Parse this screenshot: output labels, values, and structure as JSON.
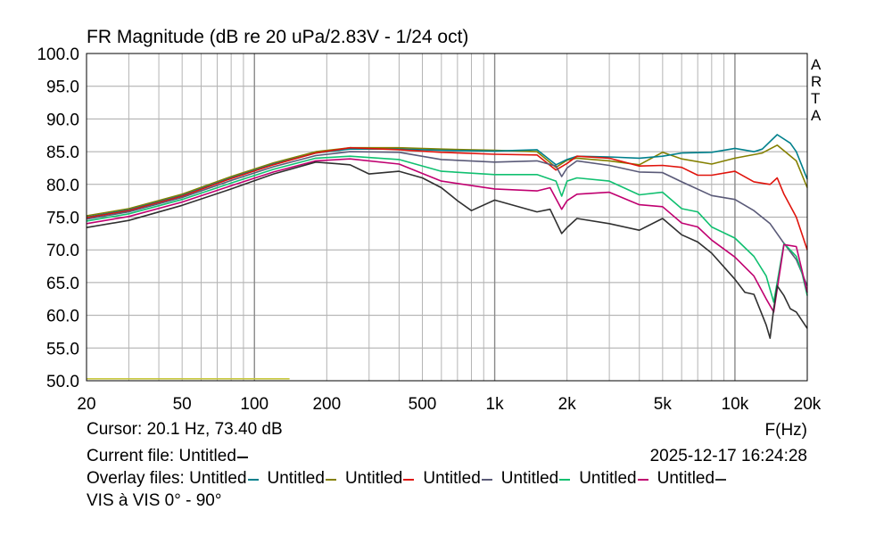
{
  "header": {
    "title": "FR Magnitude (dB re 20 uPa/2.83V - 1/24 oct)",
    "watermark": [
      "A",
      "R",
      "T",
      "A"
    ]
  },
  "footer": {
    "cursor": "Cursor: 20.1 Hz, 73.40 dB",
    "current_file": "Current file: Untitled",
    "current_file_color": "#000000",
    "datetime": "2025-12-17  16:24:28",
    "overlay_label": "Overlay files:",
    "overlay_files": [
      {
        "name": "Untitled",
        "color": "#00808c"
      },
      {
        "name": "Untitled",
        "color": "#848000"
      },
      {
        "name": "Untitled",
        "color": "#e0140c"
      },
      {
        "name": "Untitled",
        "color": "#5a5a78"
      },
      {
        "name": "Untitled",
        "color": "#10c070"
      },
      {
        "name": "Untitled",
        "color": "#c00070"
      },
      {
        "name": "Untitled",
        "color": "#303030"
      }
    ],
    "note": "VIS à VIS 0° - 90°"
  },
  "chart_data": {
    "type": "line",
    "title": "FR Magnitude (dB re 20 uPa/2.83V - 1/24 oct)",
    "xlabel": "F(Hz)",
    "ylabel": "",
    "xscale": "log",
    "xlim": [
      20,
      20000
    ],
    "ylim": [
      50,
      100
    ],
    "grid": true,
    "xticks": [
      {
        "v": 20,
        "label": "20"
      },
      {
        "v": 50,
        "label": "50"
      },
      {
        "v": 100,
        "label": "100"
      },
      {
        "v": 200,
        "label": "200"
      },
      {
        "v": 500,
        "label": "500"
      },
      {
        "v": 1000,
        "label": "1k"
      },
      {
        "v": 2000,
        "label": "2k"
      },
      {
        "v": 5000,
        "label": "5k"
      },
      {
        "v": 10000,
        "label": "10k"
      },
      {
        "v": 20000,
        "label": "20k"
      }
    ],
    "yticks": [
      "100.0",
      "95.0",
      "90.0",
      "85.0",
      "80.0",
      "75.0",
      "70.0",
      "65.0",
      "60.0",
      "55.0",
      "50.0"
    ],
    "series": [
      {
        "color": "#848000",
        "x": [
          20,
          30,
          50,
          80,
          120,
          180,
          250,
          400,
          600,
          1000,
          1500,
          1800,
          2000,
          2200,
          3000,
          4000,
          5000,
          6000,
          8000,
          10000,
          13000,
          15000,
          18000,
          20000
        ],
        "y": [
          75.2,
          76.3,
          78.5,
          81.2,
          83.3,
          85.0,
          85.6,
          85.6,
          85.4,
          85.2,
          85.0,
          82.6,
          83.7,
          84.0,
          83.6,
          83.0,
          84.9,
          83.9,
          83.1,
          84.0,
          84.8,
          86.0,
          83.6,
          79.5
        ]
      },
      {
        "color": "#00808c",
        "x": [
          20,
          30,
          50,
          80,
          120,
          180,
          250,
          400,
          600,
          1000,
          1500,
          1800,
          2000,
          2200,
          3000,
          4000,
          5000,
          6000,
          8000,
          10000,
          12000,
          13000,
          15000,
          17000,
          18000,
          20000
        ],
        "y": [
          75.0,
          76.1,
          78.3,
          81.0,
          83.1,
          84.8,
          85.4,
          85.4,
          85.2,
          85.1,
          85.3,
          83.0,
          83.8,
          84.3,
          84.2,
          84.0,
          84.3,
          84.8,
          84.9,
          85.5,
          85.0,
          85.4,
          87.6,
          86.3,
          85.0,
          80.8
        ]
      },
      {
        "color": "#e0140c",
        "x": [
          20,
          30,
          50,
          80,
          120,
          180,
          250,
          400,
          600,
          1000,
          1500,
          1800,
          2000,
          2200,
          3000,
          4000,
          5000,
          6000,
          7000,
          8000,
          10000,
          12000,
          14000,
          15000,
          16000,
          18000,
          20000
        ],
        "y": [
          74.9,
          76.0,
          78.2,
          80.9,
          83.0,
          84.8,
          85.6,
          85.3,
          84.9,
          84.6,
          84.5,
          82.2,
          83.2,
          84.3,
          84.0,
          82.8,
          82.9,
          82.6,
          81.4,
          81.4,
          82.0,
          80.4,
          80.0,
          81.0,
          78.5,
          75.0,
          70.0
        ]
      },
      {
        "color": "#5a5a78",
        "x": [
          20,
          30,
          50,
          80,
          120,
          180,
          250,
          400,
          600,
          1000,
          1500,
          1800,
          1900,
          2000,
          2200,
          3000,
          4000,
          5000,
          6000,
          8000,
          10000,
          12000,
          14000,
          16000,
          18000,
          20000
        ],
        "y": [
          74.7,
          75.8,
          78.0,
          80.6,
          82.7,
          84.4,
          85.0,
          84.9,
          83.8,
          83.4,
          83.6,
          82.8,
          81.2,
          82.5,
          83.6,
          82.9,
          81.9,
          81.8,
          80.4,
          78.3,
          77.7,
          76.0,
          74.0,
          71.0,
          68.5,
          64.5
        ]
      },
      {
        "color": "#10c070",
        "x": [
          20,
          30,
          50,
          80,
          120,
          180,
          250,
          400,
          600,
          1000,
          1500,
          1800,
          1900,
          2000,
          2200,
          3000,
          4000,
          5000,
          6000,
          7000,
          8000,
          10000,
          12000,
          13500,
          14500,
          16000,
          18000,
          19000,
          20000
        ],
        "y": [
          74.4,
          75.5,
          77.7,
          80.2,
          82.3,
          84.0,
          84.3,
          83.8,
          82.0,
          81.5,
          81.5,
          80.5,
          78.2,
          80.5,
          81.0,
          80.5,
          78.4,
          78.8,
          76.3,
          75.8,
          73.5,
          71.8,
          69.0,
          66.0,
          62.0,
          71.0,
          69.0,
          66.5,
          63.0
        ]
      },
      {
        "color": "#c00070",
        "x": [
          20,
          30,
          50,
          80,
          120,
          180,
          250,
          400,
          600,
          1000,
          1500,
          1700,
          1900,
          2000,
          2200,
          3000,
          4000,
          5000,
          6000,
          7000,
          8000,
          10000,
          12000,
          13500,
          14500,
          16000,
          18000,
          20000
        ],
        "y": [
          74.0,
          75.1,
          77.3,
          79.8,
          81.9,
          83.6,
          83.9,
          83.1,
          80.5,
          79.3,
          79.0,
          79.5,
          76.2,
          77.5,
          78.5,
          78.8,
          76.9,
          76.6,
          74.1,
          73.5,
          71.5,
          68.9,
          66.0,
          62.5,
          60.5,
          70.8,
          70.5,
          63.5
        ]
      },
      {
        "color": "#303030",
        "x": [
          20,
          30,
          50,
          80,
          120,
          180,
          250,
          300,
          400,
          500,
          600,
          700,
          800,
          1000,
          1500,
          1700,
          1900,
          2000,
          2200,
          3000,
          4000,
          5000,
          6000,
          7000,
          8000,
          10000,
          11000,
          12000,
          13500,
          14000,
          14500,
          15000,
          16000,
          17000,
          18000,
          20000
        ],
        "y": [
          73.4,
          74.5,
          76.8,
          79.3,
          81.6,
          83.4,
          83.0,
          81.6,
          82.0,
          81.0,
          79.5,
          77.5,
          76.0,
          77.6,
          75.8,
          76.2,
          72.5,
          73.4,
          74.8,
          74.0,
          73.0,
          74.8,
          72.3,
          71.2,
          69.5,
          65.5,
          63.5,
          63.2,
          58.5,
          56.5,
          61.0,
          64.5,
          63.0,
          61.0,
          60.5,
          58.0
        ]
      },
      {
        "color": "#c8c840",
        "x": [
          20,
          140
        ],
        "y": [
          50.3,
          50.3
        ]
      }
    ]
  }
}
